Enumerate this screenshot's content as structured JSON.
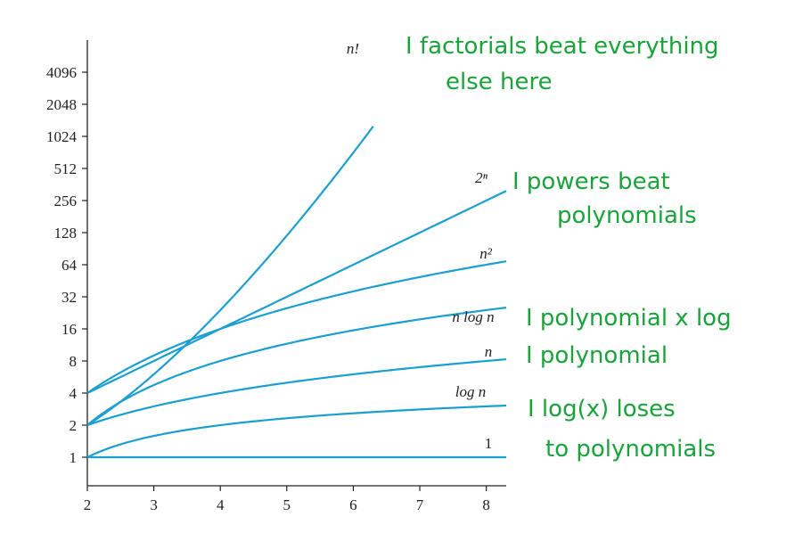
{
  "chart_data": {
    "type": "line",
    "title": "",
    "xlabel": "",
    "ylabel": "",
    "y_scale": "log2",
    "xlim": [
      2,
      8.3
    ],
    "ylim": [
      0.75,
      8192
    ],
    "grid": false,
    "x_ticks": [
      2,
      3,
      4,
      5,
      6,
      7,
      8
    ],
    "y_ticks": [
      1,
      2,
      4,
      8,
      16,
      32,
      64,
      128,
      256,
      512,
      1024,
      2048,
      4096
    ],
    "x_tick_labels": [
      "2",
      "3",
      "4",
      "5",
      "6",
      "7",
      "8"
    ],
    "y_tick_labels": [
      "1",
      "2",
      "4",
      "8",
      "16",
      "32",
      "64",
      "128",
      "256",
      "512",
      "1024",
      "2048",
      "4096"
    ],
    "line_color": "#1a9fd0",
    "series": [
      {
        "name": "n!",
        "x": [
          2,
          2.5,
          3,
          3.5,
          4,
          4.5,
          5,
          5.5,
          6,
          6.3
        ],
        "y": [
          2,
          3.32,
          6,
          11.63,
          24,
          52.34,
          120,
          287.9,
          720,
          1228
        ]
      },
      {
        "name": "2ⁿ",
        "x": [
          2,
          3,
          4,
          5,
          6,
          7,
          8,
          8.3
        ],
        "y": [
          4,
          8,
          16,
          32,
          64,
          128,
          256,
          315
        ]
      },
      {
        "name": "n²",
        "x": [
          2,
          3,
          4,
          5,
          6,
          7,
          8,
          8.3
        ],
        "y": [
          4,
          9,
          16,
          25,
          36,
          49,
          64,
          68.9
        ]
      },
      {
        "name": "n log n",
        "x": [
          2,
          3,
          4,
          5,
          6,
          7,
          8,
          8.3
        ],
        "y": [
          2,
          4.75,
          8,
          11.61,
          15.51,
          19.65,
          24,
          25.3
        ]
      },
      {
        "name": "n",
        "x": [
          2,
          3,
          4,
          5,
          6,
          7,
          8,
          8.3
        ],
        "y": [
          2,
          3,
          4,
          5,
          6,
          7,
          8,
          8.3
        ]
      },
      {
        "name": "log n",
        "x": [
          2,
          3,
          4,
          5,
          6,
          7,
          8,
          8.3
        ],
        "y": [
          1,
          1.58,
          2,
          2.32,
          2.58,
          2.81,
          3,
          3.05
        ]
      },
      {
        "name": "1",
        "x": [
          2,
          8.3
        ],
        "y": [
          1,
          1
        ]
      }
    ]
  },
  "annotations": {
    "color": "#1aa33a",
    "notes": [
      {
        "lines": [
          "I factorials beat everything",
          "else here"
        ]
      },
      {
        "lines": [
          "I powers beat",
          "polynomials"
        ]
      },
      {
        "lines": [
          "I polynomial x log"
        ]
      },
      {
        "lines": [
          "I polynomial"
        ]
      },
      {
        "lines": [
          "I log(x) loses",
          "to polynomials"
        ]
      }
    ]
  }
}
